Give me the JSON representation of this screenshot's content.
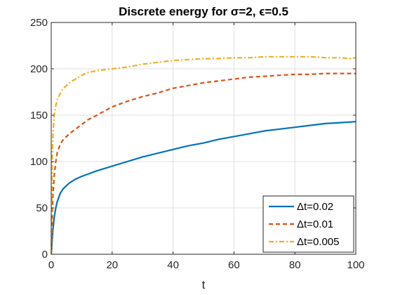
{
  "chart_data": {
    "type": "line",
    "title": "Discrete energy for σ=2, ϵ=0.5",
    "xlabel": "t",
    "ylabel": "",
    "xlim": [
      0,
      100
    ],
    "ylim": [
      0,
      250
    ],
    "xticks": [
      0,
      20,
      40,
      60,
      80,
      100
    ],
    "yticks": [
      0,
      50,
      100,
      150,
      200,
      250
    ],
    "grid": true,
    "legend_position": "bottom-right",
    "series": [
      {
        "name": "Δt=0.02",
        "color": "#0072BD",
        "dash": "solid",
        "x": [
          0,
          0.5,
          1,
          1.5,
          2,
          3,
          4,
          5,
          6,
          8,
          10,
          15,
          20,
          25,
          30,
          35,
          40,
          45,
          50,
          55,
          60,
          65,
          70,
          75,
          80,
          85,
          90,
          95,
          100
        ],
        "y": [
          0,
          25,
          40,
          50,
          57,
          66,
          71,
          74,
          77,
          81,
          84,
          90,
          95,
          100,
          105,
          109,
          113,
          117,
          120,
          124,
          127,
          130,
          133,
          135,
          137,
          139,
          141,
          142,
          143
        ]
      },
      {
        "name": "Δt=0.01",
        "color": "#D95319",
        "dash": "dashed",
        "x": [
          0,
          0.5,
          1,
          1.5,
          2,
          3,
          4,
          5,
          6,
          8,
          10,
          12,
          15,
          20,
          25,
          30,
          35,
          40,
          45,
          50,
          55,
          60,
          65,
          70,
          75,
          80,
          85,
          90,
          95,
          100
        ],
        "y": [
          0,
          60,
          85,
          100,
          110,
          119,
          124,
          127,
          130,
          135,
          140,
          145,
          150,
          159,
          165,
          170,
          174,
          179,
          182,
          185,
          187,
          189,
          191,
          192,
          193,
          194,
          194,
          195,
          195,
          195
        ]
      },
      {
        "name": "Δt=0.005",
        "color": "#EDB120",
        "dash": "dashdot",
        "x": [
          0,
          0.3,
          0.6,
          1,
          1.5,
          2,
          3,
          4,
          5,
          6,
          8,
          10,
          12,
          15,
          20,
          25,
          30,
          35,
          40,
          45,
          50,
          55,
          60,
          65,
          70,
          75,
          80,
          85,
          90,
          95,
          98,
          100
        ],
        "y": [
          0,
          100,
          130,
          150,
          160,
          167,
          174,
          179,
          182,
          185,
          189,
          193,
          196,
          198,
          200,
          202,
          205,
          207,
          209,
          210,
          211,
          211,
          212,
          212,
          213,
          213,
          213,
          213,
          212,
          212,
          211,
          212
        ]
      }
    ]
  }
}
